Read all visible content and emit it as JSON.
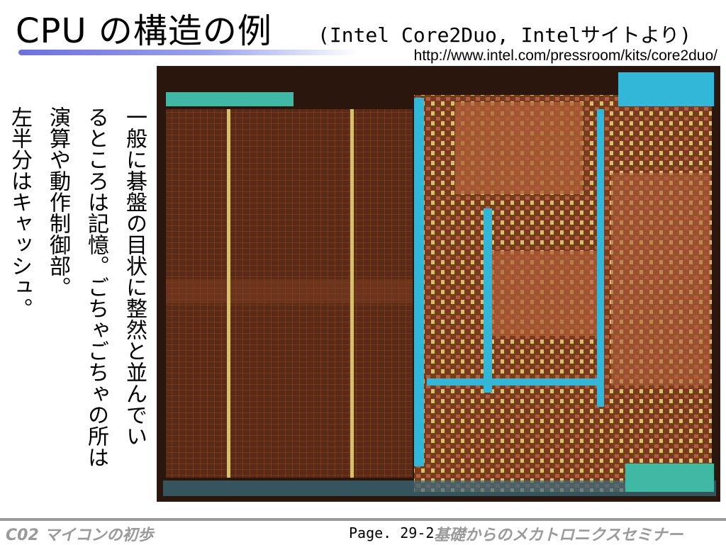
{
  "slide": {
    "title": "CPU の構造の例",
    "subtitle": "(Intel Core2Duo, Intelサイトより)",
    "source_url": "http://www.intel.com/pressroom/kits/core2duo/"
  },
  "body": {
    "lines": [
      "一般に碁盤の目状に整然と並んでい",
      "るところは記憶。ごちゃごちゃの所は",
      "演算や動作制御部。",
      "左半分はキャッシュ。"
    ]
  },
  "figure": {
    "colors": {
      "cache": "#5a2a18",
      "cache_line": "#8a4a2a",
      "logic": "#b0603a",
      "logic_alt": "#7a3a1e",
      "cyan": "#33b7d8",
      "teal": "#3fb8a4",
      "gold": "#d8c070"
    }
  },
  "footer": {
    "left": "C02 マイコンの初歩",
    "page": "Page. 29-2",
    "right": "基礎からのメカトロニクスセミナー"
  }
}
